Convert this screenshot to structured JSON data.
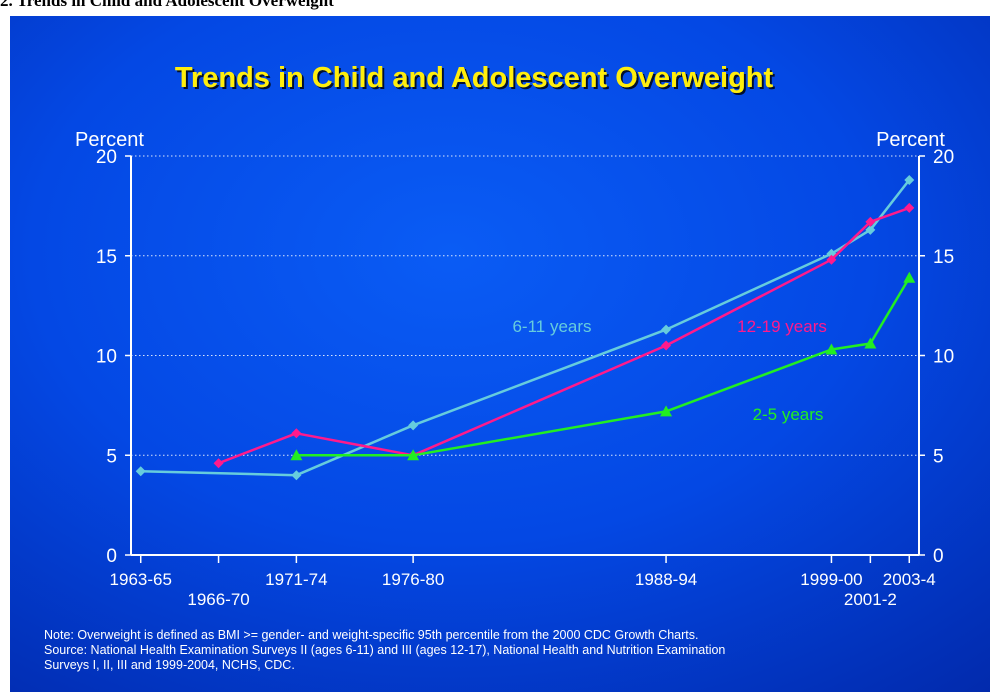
{
  "caption": "2. Trends in Child and Adolescent Overweight",
  "chart_data": {
    "type": "line",
    "title": "Trends in Child and Adolescent Overweight",
    "ylabel_left": "Percent",
    "ylabel_right": "Percent",
    "ylim": [
      0,
      20
    ],
    "yticks": [
      0,
      5,
      10,
      15,
      20
    ],
    "grid": "horizontal dotted",
    "x_ticks": [
      {
        "label": "1963-65",
        "year": 1964,
        "row": 0
      },
      {
        "label": "1966-70",
        "year": 1968,
        "row": 1
      },
      {
        "label": "1971-74",
        "year": 1972,
        "row": 0
      },
      {
        "label": "1976-80",
        "year": 1978,
        "row": 0
      },
      {
        "label": "1988-94",
        "year": 1991,
        "row": 0
      },
      {
        "label": "1999-00",
        "year": 1999.5,
        "row": 0
      },
      {
        "label": "2001-2",
        "year": 2001.5,
        "row": 1
      },
      {
        "label": "2003-4",
        "year": 2003.5,
        "row": 0
      }
    ],
    "series": [
      {
        "name": "6-11 years",
        "color": "#66ccdd",
        "marker": "diamond",
        "points": [
          [
            1964,
            4.2
          ],
          [
            1972,
            4.0
          ],
          [
            1978,
            6.5
          ],
          [
            1991,
            11.3
          ],
          [
            1999.5,
            15.1
          ],
          [
            2001.5,
            16.3
          ],
          [
            2003.5,
            18.8
          ]
        ]
      },
      {
        "name": "12-19 years",
        "color": "#ff1a8c",
        "marker": "diamond",
        "points": [
          [
            1968,
            4.6
          ],
          [
            1972,
            6.1
          ],
          [
            1978,
            5.0
          ],
          [
            1991,
            10.5
          ],
          [
            1999.5,
            14.8
          ],
          [
            2001.5,
            16.7
          ],
          [
            2003.5,
            17.4
          ]
        ]
      },
      {
        "name": "2-5 years",
        "color": "#22ee22",
        "marker": "triangle",
        "points": [
          [
            1972,
            5.0
          ],
          [
            1978,
            5.0
          ],
          [
            1991,
            7.2
          ],
          [
            1999.5,
            10.3
          ],
          [
            2001.5,
            10.6
          ],
          [
            2003.5,
            13.9
          ]
        ]
      }
    ],
    "note_lines": [
      "Note: Overweight is defined as BMI >= gender- and weight-specific 95th percentile from the 2000 CDC Growth Charts.",
      "Source: National Health Examination Surveys II (ages 6-11) and III (ages 12-17), National Health and Nutrition Examination",
      "Surveys I, II, III and 1999-2004, NCHS, CDC."
    ]
  }
}
